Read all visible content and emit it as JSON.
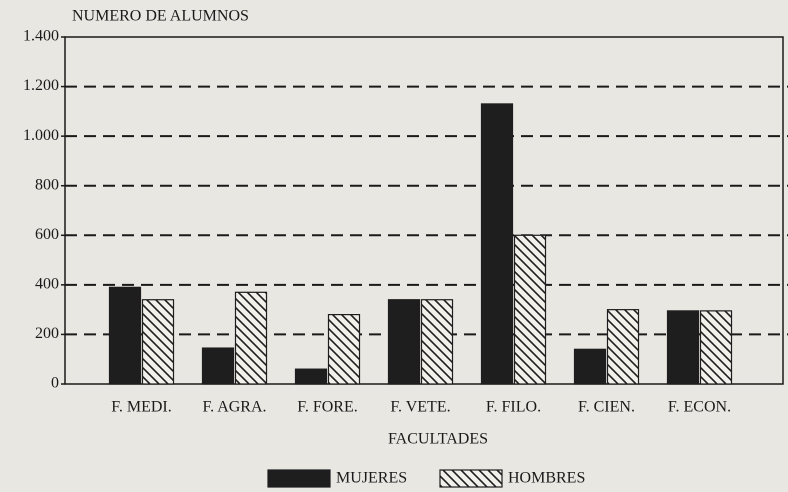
{
  "chart_data": {
    "type": "bar",
    "title": "NUMERO DE ALUMNOS",
    "x_label": "FACULTADES",
    "categories": [
      "F. MEDI.",
      "F. AGRA.",
      "F. FORE.",
      "F. VETE.",
      "F. FILO.",
      "F. CIEN.",
      "F. ECON."
    ],
    "series": [
      {
        "name": "MUJERES",
        "color": "#1e1e1e",
        "pattern": "solid",
        "values": [
          390,
          145,
          60,
          340,
          1130,
          140,
          295
        ]
      },
      {
        "name": "HOMBRES",
        "color": "#1e1e1e",
        "pattern": "hatch",
        "values": [
          340,
          370,
          280,
          340,
          600,
          300,
          295
        ]
      }
    ],
    "ylim": [
      0,
      1400
    ],
    "yticks": [
      0,
      200,
      400,
      600,
      800,
      {
        "value": 1000,
        "label": "1.000"
      },
      {
        "value": 1200,
        "label": "1.200"
      },
      {
        "value": 1400,
        "label": "1.400"
      }
    ],
    "grid": true,
    "legend": "bottom"
  }
}
